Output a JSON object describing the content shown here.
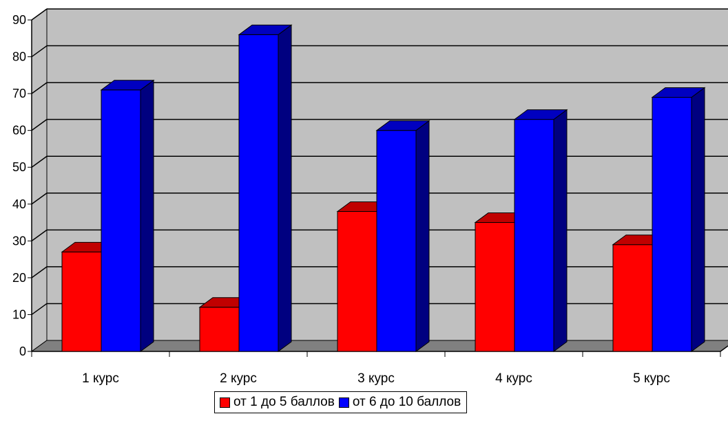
{
  "chart_data": {
    "type": "bar",
    "categories": [
      "1 курс",
      "2 курс",
      "3 курс",
      "4 курс",
      "5 курс"
    ],
    "series": [
      {
        "name": "от 1 до 5 баллов",
        "values": [
          27,
          12,
          38,
          35,
          29
        ],
        "color": "#ff0000",
        "side_color": "#990000",
        "top_color": "#c00000"
      },
      {
        "name": "от 6 до 10 баллов",
        "values": [
          71,
          86,
          60,
          63,
          69
        ],
        "color": "#0000ff",
        "side_color": "#000080",
        "top_color": "#0000c0"
      }
    ],
    "ylim": [
      0,
      90
    ],
    "yticks": [
      "0",
      "10",
      "20",
      "30",
      "40",
      "50",
      "60",
      "70",
      "80",
      "90"
    ],
    "grid": true,
    "legend_position": "bottom",
    "wall_color": "#c0c0c0",
    "floor_color": "#808080"
  }
}
